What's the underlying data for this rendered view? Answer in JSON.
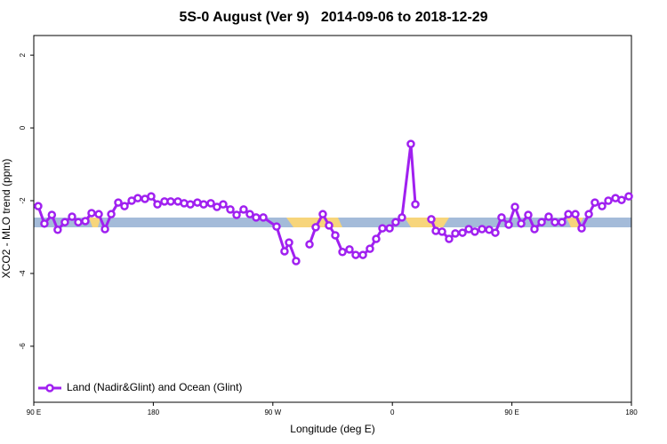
{
  "chart_data": {
    "type": "line",
    "title": "5S-0 August (Ver 9)   2014-09-06 to 2018-12-29",
    "x_label": "Longitude (deg E)",
    "y_label": "XCO2 - MLO trend (ppm)",
    "xlim": [
      90,
      540
    ],
    "ylim": [
      -7.54,
      2.54
    ],
    "xticks": [
      {
        "value": 90,
        "label": "90 E"
      },
      {
        "value": 180,
        "label": "180"
      },
      {
        "value": 270,
        "label": "90 W"
      },
      {
        "value": 360,
        "label": "0"
      },
      {
        "value": 450,
        "label": "90 E"
      },
      {
        "value": 540,
        "label": "180"
      }
    ],
    "yticks": [
      -6,
      -4,
      -2,
      0,
      2
    ],
    "legend_position": "bottom-left",
    "x": [
      93.3,
      98,
      103.6,
      108,
      113.4,
      118.8,
      123.5,
      128.8,
      133.5,
      138.9,
      143.6,
      148.3,
      153.6,
      158.3,
      163.7,
      168.3,
      173.7,
      178.4,
      183.1,
      188.4,
      193.1,
      198.5,
      203.2,
      207.9,
      213.2,
      217.9,
      223.3,
      227.9,
      232.6,
      238,
      242.7,
      248,
      252.7,
      257.4,
      262.8,
      272.8,
      278.8,
      282.2,
      287.5,
      292.5,
      297.6,
      302.3,
      307.6,
      312.3,
      317,
      322.4,
      327.7,
      332.4,
      337.8,
      343.1,
      347.8,
      352.5,
      357.9,
      362.5,
      367.2,
      373.9,
      377.3,
      383.3,
      389.3,
      392.7,
      397.4,
      402.7,
      407.4,
      412.8,
      417.5,
      422.1,
      427.5,
      432.9,
      437.5,
      442.2,
      447.6,
      452.3,
      457,
      462.3,
      467,
      472.4,
      477.7,
      482.4,
      487.7,
      492.5,
      497.8,
      502.5,
      507.9,
      512.5,
      517.9,
      522.6,
      528,
      532.6,
      538
    ],
    "series": [
      {
        "name": "Land (Nadir&Glint) and Ocean (Glint)",
        "color": "#a020f0",
        "values": [
          -2.15,
          -2.63,
          -2.39,
          -2.8,
          -2.59,
          -2.44,
          -2.59,
          -2.56,
          -2.34,
          -2.37,
          -2.78,
          -2.37,
          -2.05,
          -2.15,
          -2.0,
          -1.93,
          -1.95,
          -1.88,
          -2.1,
          -2.02,
          -2.02,
          -2.02,
          -2.07,
          -2.1,
          -2.05,
          -2.1,
          -2.07,
          -2.17,
          -2.1,
          -2.24,
          -2.39,
          -2.24,
          -2.37,
          -2.46,
          -2.46,
          -2.71,
          -3.39,
          -3.15,
          -3.66,
          null,
          -3.2,
          -2.73,
          -2.37,
          -2.68,
          -2.95,
          -3.41,
          -3.34,
          -3.49,
          -3.49,
          -3.32,
          -3.05,
          -2.76,
          -2.76,
          -2.59,
          -2.46,
          -0.44,
          -2.1,
          null,
          -2.51,
          -2.83,
          -2.85,
          -3.05,
          -2.9,
          -2.88,
          -2.78,
          -2.85,
          -2.78,
          -2.8,
          -2.88,
          -2.46,
          -2.66,
          -2.17,
          -2.63,
          -2.39,
          -2.78,
          -2.59,
          -2.44,
          -2.59,
          -2.59,
          -2.37,
          -2.37,
          -2.76,
          -2.37,
          -2.05,
          -2.15,
          -2.0,
          -1.93,
          -1.98,
          -1.88
        ]
      }
    ]
  }
}
